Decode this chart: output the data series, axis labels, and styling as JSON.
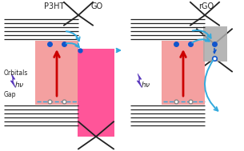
{
  "bg_color": "#ffffff",
  "title_p3ht": "P3HT",
  "title_go": "GO",
  "title_rgo": "rGO",
  "p3ht_color": "#f4a0a0",
  "go_color": "#ff5599",
  "rgo_p3ht_color": "#f4a0a0",
  "rgo_band_color": "#aaaaaa",
  "arrow_color": "#cc0000",
  "cyan_color": "#33aadd",
  "line_color": "#222222",
  "text_color": "#333333",
  "lightning_color": "#5533bb",
  "dot_color": "#1155cc",
  "figw": 3.05,
  "figh": 1.89,
  "dpi": 100
}
